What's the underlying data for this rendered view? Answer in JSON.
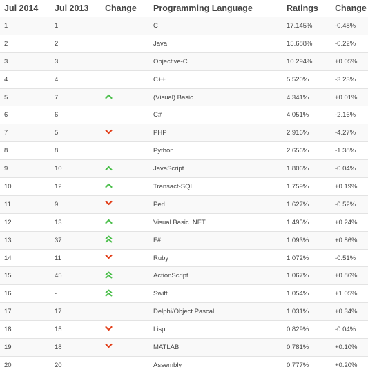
{
  "header": {
    "jul2014": "Jul 2014",
    "jul2013": "Jul 2013",
    "change": "Change",
    "language": "Programming Language",
    "ratings": "Ratings",
    "ratings_change": "Change"
  },
  "colors": {
    "up": "#4cbf4c",
    "down": "#e2401b"
  },
  "rows": [
    {
      "rank2014": "1",
      "rank2013": "1",
      "trend": "none",
      "language": "C",
      "rating": "17.145%",
      "delta": "-0.48%"
    },
    {
      "rank2014": "2",
      "rank2013": "2",
      "trend": "none",
      "language": "Java",
      "rating": "15.688%",
      "delta": "-0.22%"
    },
    {
      "rank2014": "3",
      "rank2013": "3",
      "trend": "none",
      "language": "Objective-C",
      "rating": "10.294%",
      "delta": "+0.05%"
    },
    {
      "rank2014": "4",
      "rank2013": "4",
      "trend": "none",
      "language": "C++",
      "rating": "5.520%",
      "delta": "-3.23%"
    },
    {
      "rank2014": "5",
      "rank2013": "7",
      "trend": "up",
      "language": "(Visual) Basic",
      "rating": "4.341%",
      "delta": "+0.01%"
    },
    {
      "rank2014": "6",
      "rank2013": "6",
      "trend": "none",
      "language": "C#",
      "rating": "4.051%",
      "delta": "-2.16%"
    },
    {
      "rank2014": "7",
      "rank2013": "5",
      "trend": "down",
      "language": "PHP",
      "rating": "2.916%",
      "delta": "-4.27%"
    },
    {
      "rank2014": "8",
      "rank2013": "8",
      "trend": "none",
      "language": "Python",
      "rating": "2.656%",
      "delta": "-1.38%"
    },
    {
      "rank2014": "9",
      "rank2013": "10",
      "trend": "up",
      "language": "JavaScript",
      "rating": "1.806%",
      "delta": "-0.04%"
    },
    {
      "rank2014": "10",
      "rank2013": "12",
      "trend": "up",
      "language": "Transact-SQL",
      "rating": "1.759%",
      "delta": "+0.19%"
    },
    {
      "rank2014": "11",
      "rank2013": "9",
      "trend": "down",
      "language": "Perl",
      "rating": "1.627%",
      "delta": "-0.52%"
    },
    {
      "rank2014": "12",
      "rank2013": "13",
      "trend": "up",
      "language": "Visual Basic .NET",
      "rating": "1.495%",
      "delta": "+0.24%"
    },
    {
      "rank2014": "13",
      "rank2013": "37",
      "trend": "double-up",
      "language": "F#",
      "rating": "1.093%",
      "delta": "+0.86%"
    },
    {
      "rank2014": "14",
      "rank2013": "11",
      "trend": "down",
      "language": "Ruby",
      "rating": "1.072%",
      "delta": "-0.51%"
    },
    {
      "rank2014": "15",
      "rank2013": "45",
      "trend": "double-up",
      "language": "ActionScript",
      "rating": "1.067%",
      "delta": "+0.86%"
    },
    {
      "rank2014": "16",
      "rank2013": "-",
      "trend": "double-up",
      "language": "Swift",
      "rating": "1.054%",
      "delta": "+1.05%"
    },
    {
      "rank2014": "17",
      "rank2013": "17",
      "trend": "none",
      "language": "Delphi/Object Pascal",
      "rating": "1.031%",
      "delta": "+0.34%"
    },
    {
      "rank2014": "18",
      "rank2013": "15",
      "trend": "down",
      "language": "Lisp",
      "rating": "0.829%",
      "delta": "-0.04%"
    },
    {
      "rank2014": "19",
      "rank2013": "18",
      "trend": "down",
      "language": "MATLAB",
      "rating": "0.781%",
      "delta": "+0.10%"
    },
    {
      "rank2014": "20",
      "rank2013": "20",
      "trend": "none",
      "language": "Assembly",
      "rating": "0.777%",
      "delta": "+0.20%"
    }
  ]
}
